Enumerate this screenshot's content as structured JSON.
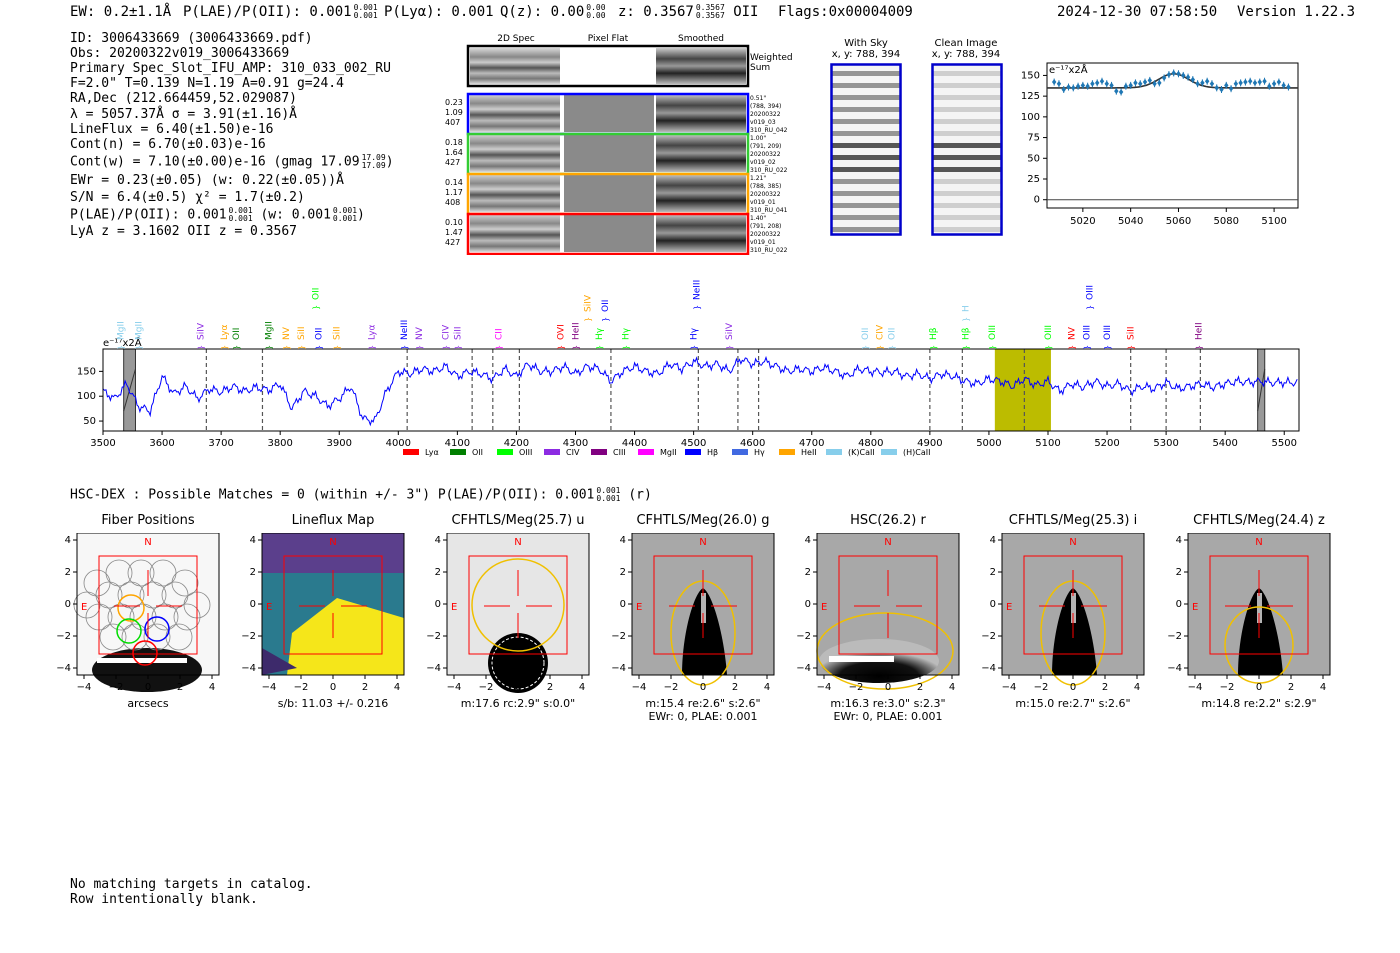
{
  "header": {
    "ew": "EW: 0.2±1.1Å",
    "plae_label": "P(LAE)/P(OII): 0.001",
    "plae_hi": "0.001",
    "plae_lo": "0.001",
    "plya": "P(Lyα): 0.001",
    "qz_label": "Q(z): 0.00",
    "qz_hi": "0.00",
    "qz_lo": "0.00",
    "z_label": "z: 0.3567",
    "z_hi": "0.3567",
    "z_lo": "0.3567",
    "z_line": "OII",
    "flags": "Flags:0x00004009",
    "timestamp": "2024-12-30 07:58:50",
    "version": "Version 1.22.3"
  },
  "info": {
    "l1": "ID: 3006433669 (3006433669.pdf)",
    "l2": "Obs: 20200322v019_3006433669",
    "l3": "Primary Spec_Slot_IFU_AMP: 310_033_002_RU",
    "l4": "F=2.0\"  T=0.139  N=1.19  A=0.91  g=24.4",
    "l5": "RA,Dec (212.664459,52.029087)",
    "l6": "λ = 5057.37Å  σ = 3.91(±1.16)Å",
    "l7": "LineFlux = 6.40(±1.50)e-16",
    "l8": "Cont(n) = 6.70(±0.03)e-16",
    "l9": "Cont(w) = 7.10(±0.00)e-16 (gmag 17.09",
    "l9_hi": "17.09",
    "l9_lo": "17.09",
    "l10": "EWr = 0.23(±0.05) (w: 0.22(±0.05))Å",
    "l11": "S/N = 6.4(±0.5)  χ² = 1.7(±0.2)",
    "l12": "P(LAE)/P(OII): 0.001",
    "l12_hi": "0.001",
    "l12_lo": "0.001",
    "l12_w": "(w: 0.001",
    "l12_w_hi": "0.001",
    "l12_w_lo": "0.001",
    "l13": "LyA z = 3.1602  OII z = 0.3567"
  },
  "cutouts": {
    "col_2d": "2D Spec",
    "col_flat": "Pixel Flat",
    "col_smooth": "Smoothed",
    "weighted": "Weighted",
    "sum": "Sum",
    "rows": [
      {
        "v1": "0.23",
        "v2": "1.09",
        "v3": "407",
        "n1": "0.51\"",
        "n2": "(788, 394)",
        "n3": "20200322",
        "n4": "v019_03",
        "n5": "310_RU_042"
      },
      {
        "v1": "0.18",
        "v2": "1.64",
        "v3": "427",
        "n1": "1.00\"",
        "n2": "(791, 209)",
        "n3": "20200322",
        "n4": "v019_02",
        "n5": "310_RU_022"
      },
      {
        "v1": "0.14",
        "v2": "1.17",
        "v3": "408",
        "n1": "1.21\"",
        "n2": "(788, 385)",
        "n3": "20200322",
        "n4": "v019_01",
        "n5": "310_RU_041"
      },
      {
        "v1": "0.10",
        "v2": "1.47",
        "v3": "427",
        "n1": "1.40\"",
        "n2": "(791, 208)",
        "n3": "20200322",
        "n4": "v019_01",
        "n5": "310_RU_022"
      }
    ],
    "with_sky": "With Sky",
    "with_sky_xy": "x, y: 788, 394",
    "clean": "Clean Image",
    "clean_xy": "x, y: 788, 394"
  },
  "chart_data": [
    {
      "type": "scatter",
      "title": "",
      "ylabel_unit": "e⁻¹⁷x2Å",
      "xlim": [
        5005,
        5110
      ],
      "ylim": [
        -10,
        165
      ],
      "xticks": [
        5020,
        5040,
        5060,
        5080,
        5100
      ],
      "yticks": [
        0,
        25,
        50,
        75,
        100,
        125,
        150
      ],
      "points_x": [
        5008,
        5010,
        5012,
        5014,
        5016,
        5018,
        5020,
        5022,
        5024,
        5026,
        5028,
        5030,
        5032,
        5034,
        5036,
        5038,
        5040,
        5042,
        5044,
        5046,
        5048,
        5050,
        5052,
        5054,
        5056,
        5058,
        5060,
        5062,
        5064,
        5066,
        5068,
        5070,
        5072,
        5074,
        5076,
        5078,
        5080,
        5082,
        5084,
        5086,
        5088,
        5090,
        5092,
        5094,
        5096,
        5098,
        5100,
        5102,
        5104,
        5106
      ],
      "points_y": [
        142,
        140,
        133,
        136,
        135,
        137,
        138,
        137,
        140,
        141,
        143,
        140,
        138,
        131,
        130,
        137,
        138,
        141,
        140,
        142,
        144,
        140,
        141,
        147,
        151,
        153,
        152,
        150,
        148,
        145,
        140,
        141,
        143,
        140,
        135,
        133,
        138,
        134,
        140,
        141,
        142,
        143,
        141,
        142,
        143,
        137,
        140,
        142,
        138,
        136
      ],
      "model_baseline": 135,
      "model_peak": 152,
      "model_center": 5058,
      "model_sigma": 3.91
    },
    {
      "type": "line",
      "ylabel_unit": "e⁻¹⁷x2Å",
      "xlim": [
        3500,
        5525
      ],
      "ylim": [
        30,
        195
      ],
      "xticks": [
        3500,
        3600,
        3700,
        3800,
        3900,
        4000,
        4100,
        4200,
        4300,
        4400,
        4500,
        4600,
        4700,
        4800,
        4900,
        5000,
        5100,
        5200,
        5300,
        5400,
        5500
      ],
      "yticks": [
        50,
        100,
        150
      ],
      "highlight": [
        5010,
        5105
      ],
      "masked": [
        [
          3535,
          3555
        ],
        [
          5455,
          5467
        ]
      ],
      "dashed_lines": [
        3675,
        3770,
        4015,
        4125,
        4160,
        4205,
        4360,
        4508,
        4575,
        4610,
        4900,
        4955,
        5060,
        5240,
        5300,
        5358
      ],
      "spectrum_x": [
        3500,
        3520,
        3540,
        3560,
        3580,
        3600,
        3620,
        3640,
        3660,
        3680,
        3700,
        3720,
        3740,
        3760,
        3780,
        3800,
        3820,
        3840,
        3860,
        3880,
        3900,
        3920,
        3940,
        3960,
        3980,
        4000,
        4020,
        4040,
        4060,
        4080,
        4100,
        4120,
        4140,
        4160,
        4180,
        4200,
        4220,
        4240,
        4260,
        4280,
        4300,
        4320,
        4340,
        4360,
        4380,
        4400,
        4420,
        4440,
        4460,
        4480,
        4500,
        4520,
        4540,
        4560,
        4580,
        4600,
        4620,
        4640,
        4660,
        4680,
        4700,
        4720,
        4740,
        4760,
        4780,
        4800,
        4820,
        4840,
        4860,
        4880,
        4900,
        4920,
        4940,
        4960,
        4980,
        5000,
        5020,
        5040,
        5060,
        5080,
        5100,
        5120,
        5140,
        5160,
        5180,
        5200,
        5220,
        5240,
        5260,
        5280,
        5300,
        5320,
        5340,
        5360,
        5380,
        5400,
        5420,
        5440,
        5460,
        5480,
        5500,
        5525
      ],
      "spectrum_y": [
        110,
        95,
        125,
        80,
        70,
        140,
        105,
        120,
        95,
        115,
        108,
        120,
        110,
        118,
        112,
        125,
        75,
        110,
        100,
        80,
        95,
        120,
        55,
        50,
        110,
        150,
        145,
        155,
        150,
        160,
        140,
        150,
        145,
        135,
        155,
        140,
        165,
        150,
        150,
        160,
        145,
        160,
        155,
        130,
        150,
        160,
        150,
        145,
        165,
        155,
        170,
        160,
        165,
        150,
        175,
        165,
        170,
        160,
        150,
        155,
        150,
        158,
        150,
        140,
        155,
        150,
        148,
        150,
        140,
        145,
        135,
        145,
        140,
        130,
        125,
        135,
        130,
        120,
        135,
        122,
        130,
        110,
        125,
        118,
        130,
        120,
        125,
        110,
        120,
        115,
        128,
        115,
        120,
        125,
        118,
        125,
        130,
        128,
        130,
        127,
        128,
        127
      ],
      "legend": [
        {
          "label": "Lyα",
          "color": "#ff0000"
        },
        {
          "label": "OII",
          "color": "#007f00"
        },
        {
          "label": "OIII",
          "color": "#00ff00"
        },
        {
          "label": "CIV",
          "color": "#8c2be2"
        },
        {
          "label": "CIII",
          "color": "#800080"
        },
        {
          "label": "MgII",
          "color": "#ff00ff"
        },
        {
          "label": "Hβ",
          "color": "#0000ff"
        },
        {
          "label": "Hγ",
          "color": "#4169e1"
        },
        {
          "label": "HeII",
          "color": "#ffa500"
        },
        {
          "label": "(K)CaII",
          "color": "#87ceeb"
        },
        {
          "label": "(H)CaII",
          "color": "#87ceeb"
        }
      ],
      "line_labels": [
        {
          "t": "MgII",
          "w": 3530,
          "c": "#87ceeb",
          "row": 0
        },
        {
          "t": "MgII",
          "w": 3560,
          "c": "#87ceeb",
          "row": 0
        },
        {
          "t": "SiIV",
          "w": 3665,
          "c": "#8c2be2",
          "row": 0
        },
        {
          "t": "Lyα",
          "w": 3705,
          "c": "#ffa500",
          "row": 0
        },
        {
          "t": "OII",
          "w": 3725,
          "c": "#007f00",
          "row": 0
        },
        {
          "t": "MgII",
          "w": 3780,
          "c": "#007f00",
          "row": 0
        },
        {
          "t": "NV",
          "w": 3810,
          "c": "#ffa500",
          "row": 0
        },
        {
          "t": "SiII",
          "w": 3835,
          "c": "#ffa500",
          "row": 0
        },
        {
          "t": "OII",
          "w": 3865,
          "c": "#0000ff",
          "row": 0
        },
        {
          "t": "SiII",
          "w": 3895,
          "c": "#ffa500",
          "row": 0
        },
        {
          "t": "Lyα",
          "w": 3955,
          "c": "#8c2be2",
          "row": 0
        },
        {
          "t": "NeIII",
          "w": 4010,
          "c": "#0000ff",
          "row": 0
        },
        {
          "t": "NV",
          "w": 4035,
          "c": "#8c2be2",
          "row": 0
        },
        {
          "t": "CIV",
          "w": 4080,
          "c": "#8c2be2",
          "row": 0
        },
        {
          "t": "SiII",
          "w": 4100,
          "c": "#8c2be2",
          "row": 0
        },
        {
          "t": "CII",
          "w": 4170,
          "c": "#ff00ff",
          "row": 0
        },
        {
          "t": "OVI",
          "w": 4275,
          "c": "#ff0000",
          "row": 0
        },
        {
          "t": "HeII",
          "w": 4300,
          "c": "#800080",
          "row": 0
        },
        {
          "t": "Hγ",
          "w": 4340,
          "c": "#00ff00",
          "row": 0
        },
        {
          "t": "Hγ",
          "w": 4385,
          "c": "#00ff00",
          "row": 0
        },
        {
          "t": "Hγ",
          "w": 4500,
          "c": "#0000ff",
          "row": 0
        },
        {
          "t": "SiIV",
          "w": 4560,
          "c": "#8c2be2",
          "row": 0
        },
        {
          "t": "OII",
          "w": 4790,
          "c": "#87ceeb",
          "row": 0
        },
        {
          "t": "CIV",
          "w": 4815,
          "c": "#ffa500",
          "row": 0
        },
        {
          "t": "OII",
          "w": 4835,
          "c": "#87ceeb",
          "row": 0
        },
        {
          "t": "Hβ",
          "w": 4905,
          "c": "#00ff00",
          "row": 0
        },
        {
          "t": "Hβ",
          "w": 4960,
          "c": "#00ff00",
          "row": 0
        },
        {
          "t": "OIII",
          "w": 5005,
          "c": "#00ff00",
          "row": 0
        },
        {
          "t": "OIII",
          "w": 5100,
          "c": "#00ff00",
          "row": 0
        },
        {
          "t": "NV",
          "w": 5140,
          "c": "#ff0000",
          "row": 0
        },
        {
          "t": "OIII",
          "w": 5165,
          "c": "#0000ff",
          "row": 0
        },
        {
          "t": "OIII",
          "w": 5200,
          "c": "#0000ff",
          "row": 0
        },
        {
          "t": "SiII",
          "w": 5240,
          "c": "#ff0000",
          "row": 0
        },
        {
          "t": "HeII",
          "w": 5355,
          "c": "#800080",
          "row": 0
        },
        {
          "t": "OII",
          "w": 3860,
          "c": "#00ff00",
          "row": 2
        },
        {
          "t": "SiIV",
          "w": 4320,
          "c": "#ffa500",
          "row": 1
        },
        {
          "t": "OII",
          "w": 4350,
          "c": "#0000ff",
          "row": 1
        },
        {
          "t": "NeIII",
          "w": 4505,
          "c": "#0000ff",
          "row": 2
        },
        {
          "t": "H",
          "w": 4960,
          "c": "#87ceeb",
          "row": 1
        },
        {
          "t": "OIII",
          "w": 5170,
          "c": "#0000ff",
          "row": 2
        }
      ]
    }
  ],
  "hsc": {
    "text": "HSC-DEX : Possible Matches = 0 (within +/- 3\")  P(LAE)/P(OII): 0.001",
    "hi": "0.001",
    "lo": "0.001",
    "band": "(r)"
  },
  "panels": [
    {
      "title": "Fiber Positions",
      "cap1": "arcsecs",
      "cap2": ""
    },
    {
      "title": "Lineflux Map",
      "cap1": "s/b: 11.03 +/- 0.216",
      "cap2": ""
    },
    {
      "title": "CFHTLS/Meg(25.7) u",
      "cap1": "m:17.6 rc:2.9\"  s:0.0\"",
      "cap2": ""
    },
    {
      "title": "CFHTLS/Meg(26.0) g",
      "cap1": "m:15.4  re:2.6\"  s:2.6\"",
      "cap2": "EWr: 0, PLAE: 0.001"
    },
    {
      "title": "HSC(26.2) r",
      "cap1": "m:16.3  re:3.0\"  s:2.3\"",
      "cap2": "EWr: 0, PLAE: 0.001"
    },
    {
      "title": "CFHTLS/Meg(25.3) i",
      "cap1": "m:15.0  re:2.7\"  s:2.6\"",
      "cap2": ""
    },
    {
      "title": "CFHTLS/Meg(24.4) z",
      "cap1": "m:14.8  re:2.2\"  s:2.9\"",
      "cap2": ""
    }
  ],
  "panel_axes": {
    "ticks": [
      "−4",
      "−2",
      "0",
      "2",
      "4"
    ],
    "n": "N",
    "e": "E"
  },
  "footer": {
    "l1": "No matching targets in catalog.",
    "l2": "Row intentionally blank."
  },
  "colors": {
    "spectrum": "#0000ff",
    "highlight": "#bcbc00",
    "model": "#333333",
    "points": "#1f77b4",
    "box": "#ff0000",
    "ellipse": "#f0c000"
  }
}
